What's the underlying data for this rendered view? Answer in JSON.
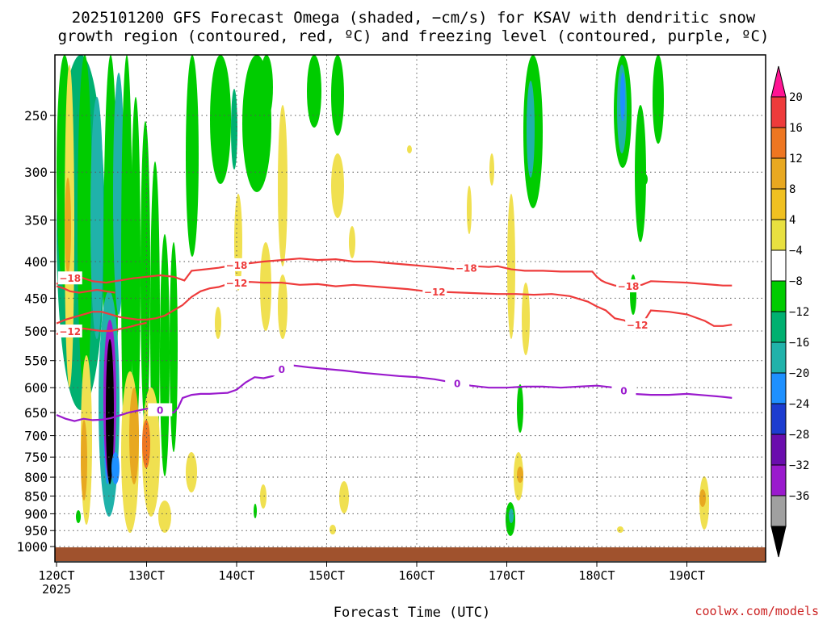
{
  "title_line1": "2025101200 GFS Forecast Omega (shaded, −cm/s) for KSAV with dendritic snow",
  "title_line2": "growth region (contoured, red, ºC) and freezing level (contoured, purple, ºC)",
  "xlabel": "Forecast Time (UTC)",
  "xlabel_year": "2025",
  "credit": "coolwx.com/models",
  "colors": {
    "dgz": "#ee3b3b",
    "freezing": "#9a1acd",
    "ground": "#a0522d"
  },
  "chart_data": {
    "type": "heatmap",
    "x_ticks": [
      "120CT",
      "130CT",
      "140CT",
      "150CT",
      "160CT",
      "170CT",
      "180CT",
      "190CT"
    ],
    "y_ticks": [
      250,
      300,
      350,
      400,
      450,
      500,
      550,
      600,
      650,
      700,
      750,
      800,
      850,
      900,
      950,
      1000
    ],
    "y_axis": "pressure (hPa), decreasing upward",
    "grid": true,
    "colorbar": {
      "labels": [
        "20",
        "16",
        "12",
        "8",
        "4",
        "−4",
        "−8",
        "−12",
        "−16",
        "−20",
        "−24",
        "−28",
        "−32",
        "−36"
      ],
      "colors": [
        "#ff1493",
        "#ee3b3b",
        "#ee7621",
        "#e8a820",
        "#f0c020",
        "#e8e040",
        "#ffffff",
        "#00cc00",
        "#00b070",
        "#20b2aa",
        "#1e90ff",
        "#1c3cd0",
        "#6a0dad",
        "#9a1acd",
        "#a0a0a0",
        "#000000"
      ]
    },
    "contours": [
      {
        "name": "-18",
        "label": "−18",
        "color": "#ee3b3b",
        "points": [
          [
            120.0,
            430
          ],
          [
            121.2,
            422
          ],
          [
            122.5,
            420
          ],
          [
            124.0,
            426
          ],
          [
            125.5,
            428
          ],
          [
            127.0,
            425
          ],
          [
            128.5,
            422
          ],
          [
            130.0,
            420
          ],
          [
            131.5,
            418
          ],
          [
            133.0,
            420
          ],
          [
            134.2,
            425
          ],
          [
            135.0,
            412
          ],
          [
            136.5,
            410
          ],
          [
            138.0,
            408
          ],
          [
            140.0,
            404
          ],
          [
            141.5,
            402
          ],
          [
            143.0,
            400
          ],
          [
            145.0,
            398
          ],
          [
            147.0,
            396
          ],
          [
            149.0,
            398
          ],
          [
            151.0,
            397
          ],
          [
            153.0,
            400
          ],
          [
            155.0,
            400
          ],
          [
            157.0,
            402
          ],
          [
            159.0,
            404
          ],
          [
            161.0,
            406
          ],
          [
            163.0,
            408
          ],
          [
            164.5,
            410
          ],
          [
            166.5,
            406
          ],
          [
            168.0,
            407
          ],
          [
            169.0,
            406
          ],
          [
            170.5,
            410
          ],
          [
            172.0,
            412
          ],
          [
            174.0,
            412
          ],
          [
            176.0,
            413
          ],
          [
            178.0,
            413
          ],
          [
            179.5,
            413
          ],
          [
            180.0,
            420
          ],
          [
            180.5,
            425
          ],
          [
            181.0,
            428
          ],
          [
            182.0,
            432
          ],
          [
            183.0,
            433
          ],
          [
            185.0,
            431
          ],
          [
            186.0,
            426
          ],
          [
            188.0,
            427
          ],
          [
            190.0,
            428
          ],
          [
            192.0,
            430
          ],
          [
            194.0,
            432
          ],
          [
            195.0,
            432
          ]
        ],
        "label_x": [
          121.5,
          140.0,
          165.5,
          183.5
        ]
      },
      {
        "name": "-12-upper",
        "label": "−12",
        "color": "#ee3b3b",
        "points": [
          [
            120.0,
            488
          ],
          [
            121.0,
            482
          ],
          [
            122.0,
            478
          ],
          [
            123.0,
            474
          ],
          [
            124.0,
            470
          ],
          [
            125.0,
            470
          ],
          [
            126.0,
            474
          ],
          [
            127.0,
            478
          ],
          [
            128.0,
            480
          ],
          [
            129.0,
            482
          ],
          [
            130.0,
            482
          ],
          [
            131.0,
            480
          ],
          [
            132.0,
            476
          ],
          [
            133.0,
            468
          ],
          [
            134.0,
            460
          ],
          [
            135.0,
            448
          ],
          [
            136.0,
            440
          ],
          [
            137.0,
            436
          ],
          [
            138.0,
            434
          ],
          [
            139.0,
            430
          ],
          [
            140.0,
            428
          ],
          [
            141.5,
            427
          ],
          [
            143.0,
            428
          ],
          [
            145.0,
            428
          ],
          [
            147.0,
            431
          ],
          [
            149.0,
            430
          ],
          [
            151.0,
            433
          ],
          [
            153.0,
            431
          ],
          [
            155.0,
            433
          ],
          [
            157.0,
            435
          ],
          [
            159.0,
            437
          ],
          [
            161.0,
            440
          ],
          [
            163.0,
            441
          ],
          [
            165.0,
            442
          ],
          [
            167.0,
            443
          ],
          [
            169.0,
            444
          ],
          [
            171.0,
            444
          ],
          [
            173.0,
            445
          ],
          [
            175.0,
            444
          ],
          [
            177.0,
            447
          ],
          [
            179.0,
            455
          ],
          [
            180.0,
            462
          ],
          [
            181.0,
            468
          ],
          [
            182.0,
            480
          ],
          [
            183.0,
            483
          ],
          [
            184.0,
            490
          ],
          [
            185.0,
            490
          ],
          [
            186.0,
            468
          ],
          [
            188.0,
            470
          ],
          [
            190.0,
            474
          ],
          [
            192.0,
            484
          ],
          [
            193.0,
            492
          ],
          [
            194.0,
            492
          ],
          [
            195.0,
            490
          ]
        ],
        "label_x": [
          140.0,
          162.0,
          184.5
        ]
      },
      {
        "name": "-18-lower",
        "label": "−18",
        "color": "#ee3b3b",
        "points": [
          [
            120.0,
            433
          ],
          [
            120.8,
            436
          ],
          [
            121.5,
            440
          ],
          [
            122.5,
            442
          ],
          [
            123.5,
            440
          ],
          [
            124.5,
            438
          ],
          [
            125.5,
            440
          ],
          [
            126.5,
            442
          ]
        ],
        "label_x": []
      },
      {
        "name": "-12-lower",
        "label": "−12",
        "color": "#ee3b3b",
        "points": [
          [
            120.0,
            505
          ],
          [
            121.0,
            502
          ],
          [
            122.0,
            498
          ],
          [
            123.0,
            496
          ],
          [
            124.0,
            498
          ],
          [
            125.0,
            500
          ],
          [
            126.0,
            500
          ],
          [
            127.0,
            497
          ],
          [
            128.0,
            494
          ],
          [
            129.0,
            490
          ],
          [
            130.0,
            487
          ]
        ],
        "label_x": [
          121.5
        ]
      },
      {
        "name": "0",
        "label": "0",
        "color": "#9a1acd",
        "points": [
          [
            120.0,
            655
          ],
          [
            121.0,
            663
          ],
          [
            122.0,
            668
          ],
          [
            123.0,
            663
          ],
          [
            124.0,
            666
          ],
          [
            125.0,
            665
          ],
          [
            126.0,
            662
          ],
          [
            127.0,
            656
          ],
          [
            128.0,
            650
          ],
          [
            129.0,
            646
          ],
          [
            130.0,
            642
          ],
          [
            131.0,
            640
          ],
          [
            132.0,
            648
          ],
          [
            133.0,
            650
          ],
          [
            133.5,
            640
          ],
          [
            134.0,
            620
          ],
          [
            135.0,
            614
          ],
          [
            136.0,
            612
          ],
          [
            137.0,
            612
          ],
          [
            138.0,
            611
          ],
          [
            139.0,
            610
          ],
          [
            140.0,
            604
          ],
          [
            141.0,
            590
          ],
          [
            142.0,
            580
          ],
          [
            143.0,
            582
          ],
          [
            144.0,
            578
          ],
          [
            145.0,
            565
          ],
          [
            146.0,
            558
          ],
          [
            148.0,
            562
          ],
          [
            150.0,
            565
          ],
          [
            152.0,
            568
          ],
          [
            154.0,
            572
          ],
          [
            156.0,
            575
          ],
          [
            158.0,
            578
          ],
          [
            160.0,
            580
          ],
          [
            162.0,
            584
          ],
          [
            164.0,
            590
          ],
          [
            166.0,
            596
          ],
          [
            168.0,
            600
          ],
          [
            170.0,
            600
          ],
          [
            172.0,
            598
          ],
          [
            174.0,
            598
          ],
          [
            176.0,
            600
          ],
          [
            178.0,
            598
          ],
          [
            180.0,
            596
          ],
          [
            182.0,
            600
          ],
          [
            183.0,
            605
          ],
          [
            184.0,
            612
          ],
          [
            186.0,
            614
          ],
          [
            188.0,
            614
          ],
          [
            190.0,
            612
          ],
          [
            192.0,
            615
          ],
          [
            194.0,
            618
          ],
          [
            195.0,
            620
          ]
        ],
        "label_x": [
          131.5,
          145.0,
          164.5,
          183.0
        ]
      }
    ]
  }
}
